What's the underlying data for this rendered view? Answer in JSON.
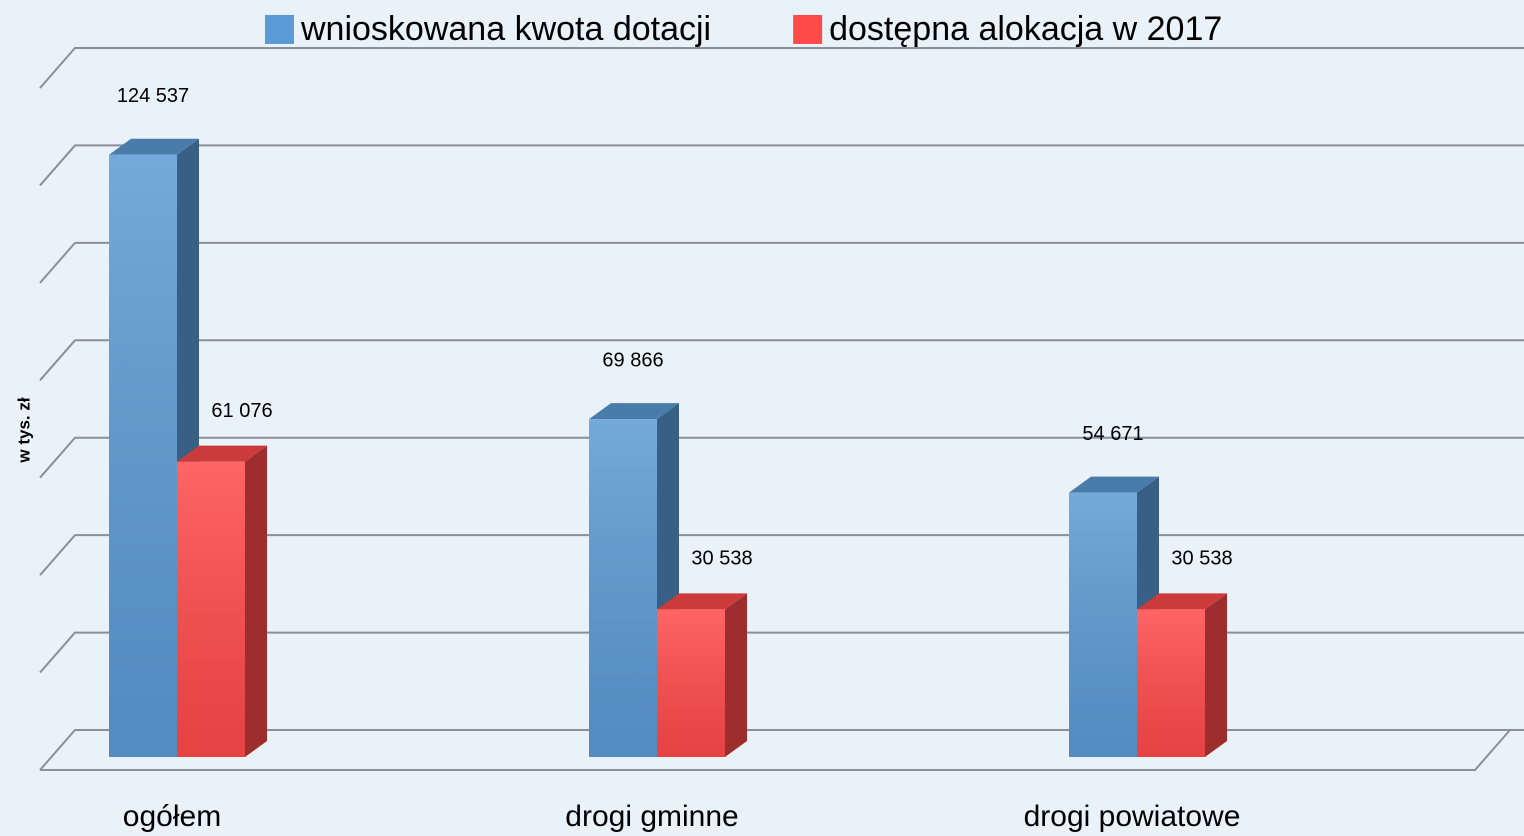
{
  "chart_data": {
    "type": "bar3d",
    "y_axis_label": "w tys. zł",
    "categories": [
      "ogółem",
      "drogi gminne",
      "drogi powiatowe"
    ],
    "series": [
      {
        "name": "wnioskowana kwota dotacji",
        "color": "#5b9bd5",
        "values": [
          124537,
          69866,
          54671
        ],
        "value_labels": [
          "124 537",
          "69 866",
          "54 671"
        ]
      },
      {
        "name": "dostępna alokacja w 2017",
        "color": "#ff4a4a",
        "values": [
          61076,
          30538,
          30538
        ],
        "value_labels": [
          "61 076",
          "30 538",
          "30 538"
        ]
      }
    ],
    "ylim": [
      0,
      140000
    ],
    "yticks": [
      0,
      20000,
      40000,
      60000,
      80000,
      100000,
      120000,
      140000
    ],
    "grid": true,
    "legend": "top"
  }
}
